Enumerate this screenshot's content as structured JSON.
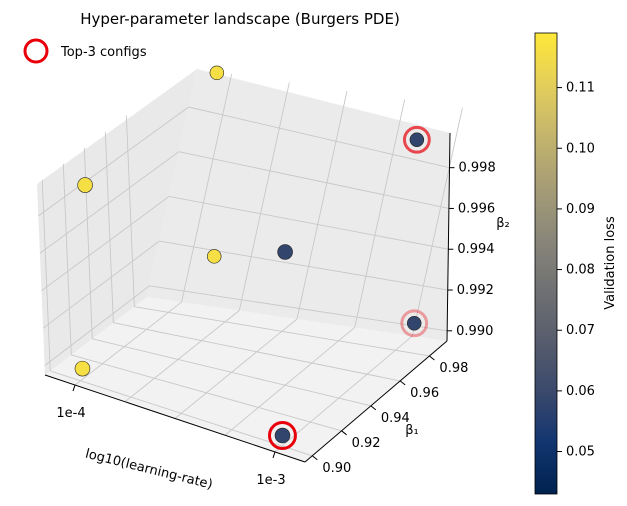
{
  "chart_data": {
    "type": "scatter",
    "projection": "3d",
    "title": "Hyper-parameter landscape (Burgers PDE)",
    "xlabel": "log10(learning-rate)",
    "ylabel": "β₁",
    "zlabel": "β₂",
    "x_ticks": [
      "1e-4",
      "1e-3"
    ],
    "y_ticks": [
      "0.90",
      "0.92",
      "0.94",
      "0.96",
      "0.98"
    ],
    "z_ticks": [
      "0.990",
      "0.992",
      "0.994",
      "0.996",
      "0.998"
    ],
    "colorbar": {
      "label": "Validation loss",
      "range": [
        0.043,
        0.119
      ],
      "ticks": [
        "0.05",
        "0.06",
        "0.07",
        "0.08",
        "0.09",
        "0.10",
        "0.11"
      ],
      "colormap": "cividis",
      "colors": [
        "#00224e",
        "#123570",
        "#3b496c",
        "#575d6d",
        "#707173",
        "#8a8779",
        "#a69d75",
        "#c4b56c",
        "#e4cf5b",
        "#fee838"
      ]
    },
    "legend": {
      "label": "Top-3 configs",
      "position": "top-left",
      "color": "#e8000b"
    },
    "points": [
      {
        "x": -4,
        "y": 0.99,
        "z": 0.999,
        "loss": 0.116
      },
      {
        "x": -4,
        "y": 0.9,
        "z": 0.999,
        "loss": 0.116
      },
      {
        "x": -4,
        "y": 0.99,
        "z": 0.99,
        "loss": 0.116
      },
      {
        "x": -4,
        "y": 0.9,
        "z": 0.99,
        "loss": 0.116
      },
      {
        "x": -3,
        "y": 0.9,
        "z": 0.999,
        "loss": 0.058
      },
      {
        "x": -3,
        "y": 0.99,
        "z": 0.999,
        "loss": 0.058,
        "top3": 1
      },
      {
        "x": -3,
        "y": 0.99,
        "z": 0.99,
        "loss": 0.058,
        "top3": 2
      },
      {
        "x": -3,
        "y": 0.9,
        "z": 0.99,
        "loss": 0.058,
        "top3": 3
      }
    ]
  }
}
